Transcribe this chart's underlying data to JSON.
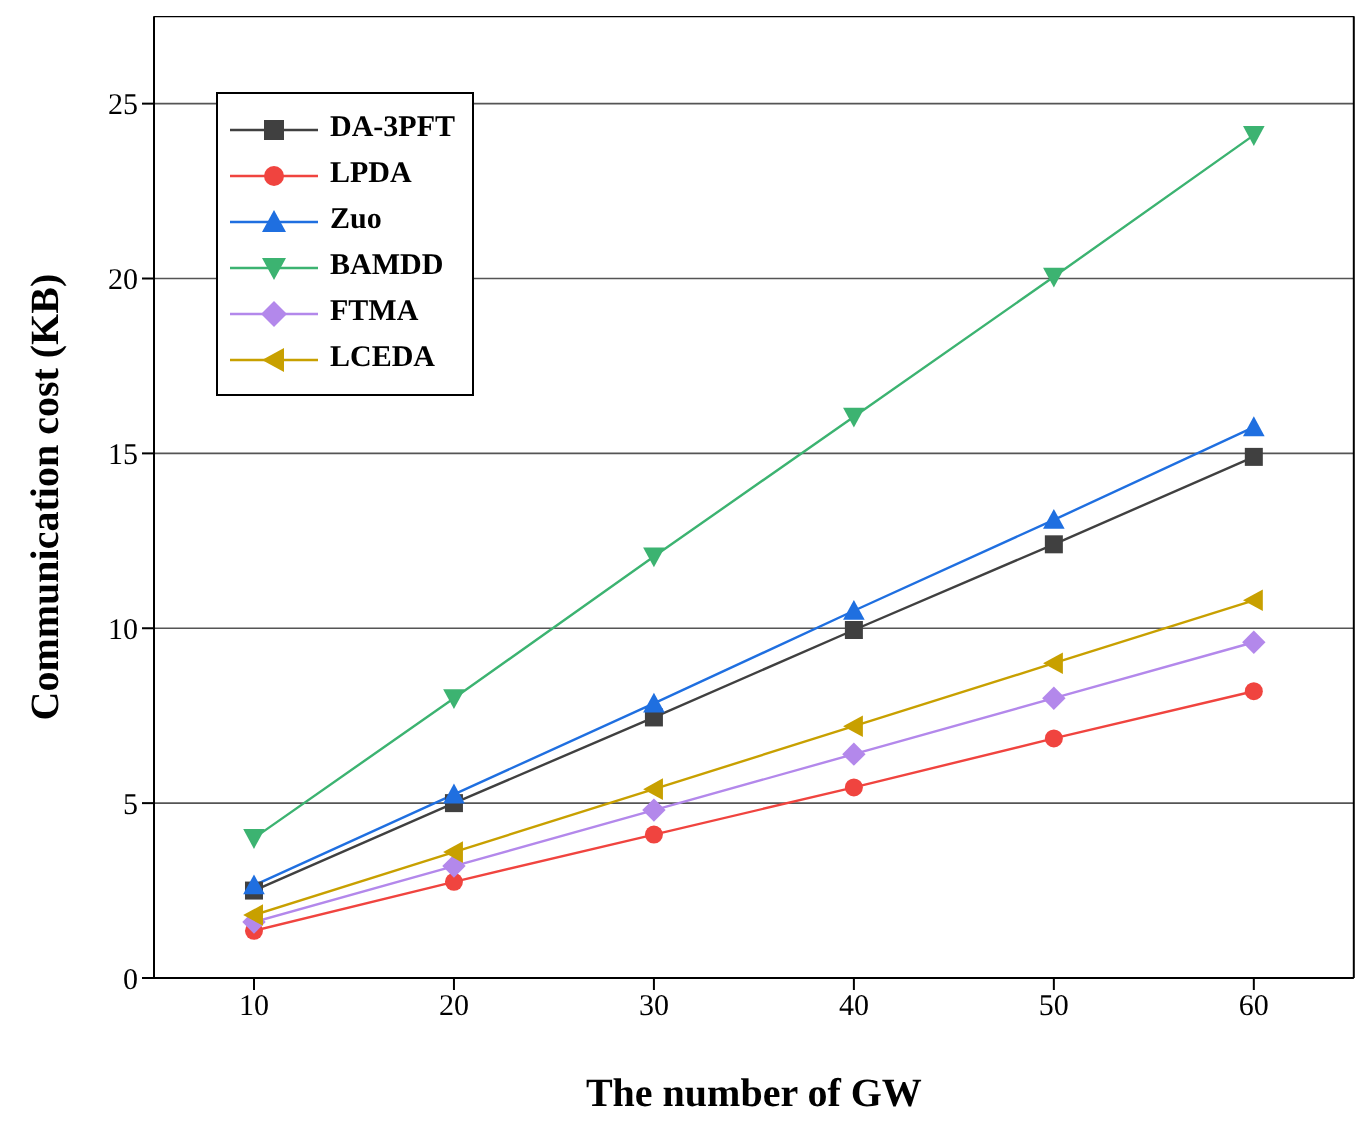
{
  "chart_data": {
    "type": "line",
    "xlabel": "The number of GW",
    "ylabel": "Communication cost (KB)",
    "x": [
      10,
      20,
      30,
      40,
      50,
      60
    ],
    "xlim": [
      5,
      65
    ],
    "xticks": [
      10,
      20,
      30,
      40,
      50,
      60
    ],
    "ylim": [
      0,
      27.5
    ],
    "yticks": [
      0,
      5,
      10,
      15,
      20,
      25
    ],
    "grid": "y",
    "legend": "top left",
    "series": [
      {
        "name": "DA-3PFT",
        "color": "#404040",
        "marker": "square",
        "values": [
          2.5,
          5.0,
          7.45,
          9.95,
          12.4,
          14.9
        ]
      },
      {
        "name": "LPDA",
        "color": "#f0443f",
        "marker": "circle",
        "values": [
          1.35,
          2.75,
          4.1,
          5.45,
          6.85,
          8.2
        ]
      },
      {
        "name": "Zuo",
        "color": "#1f6fe0",
        "marker": "triangle",
        "values": [
          2.65,
          5.25,
          7.85,
          10.5,
          13.1,
          15.75
        ]
      },
      {
        "name": "BAMDD",
        "color": "#3cb371",
        "marker": "triangle-down",
        "values": [
          4.0,
          8.0,
          12.05,
          16.05,
          20.05,
          24.1
        ]
      },
      {
        "name": "FTMA",
        "color": "#b388eb",
        "marker": "diamond",
        "values": [
          1.6,
          3.2,
          4.8,
          6.4,
          8.0,
          9.6
        ]
      },
      {
        "name": "LCEDA",
        "color": "#c8a000",
        "marker": "triangle-left",
        "values": [
          1.8,
          3.6,
          5.4,
          7.2,
          9.0,
          10.8
        ]
      }
    ]
  }
}
